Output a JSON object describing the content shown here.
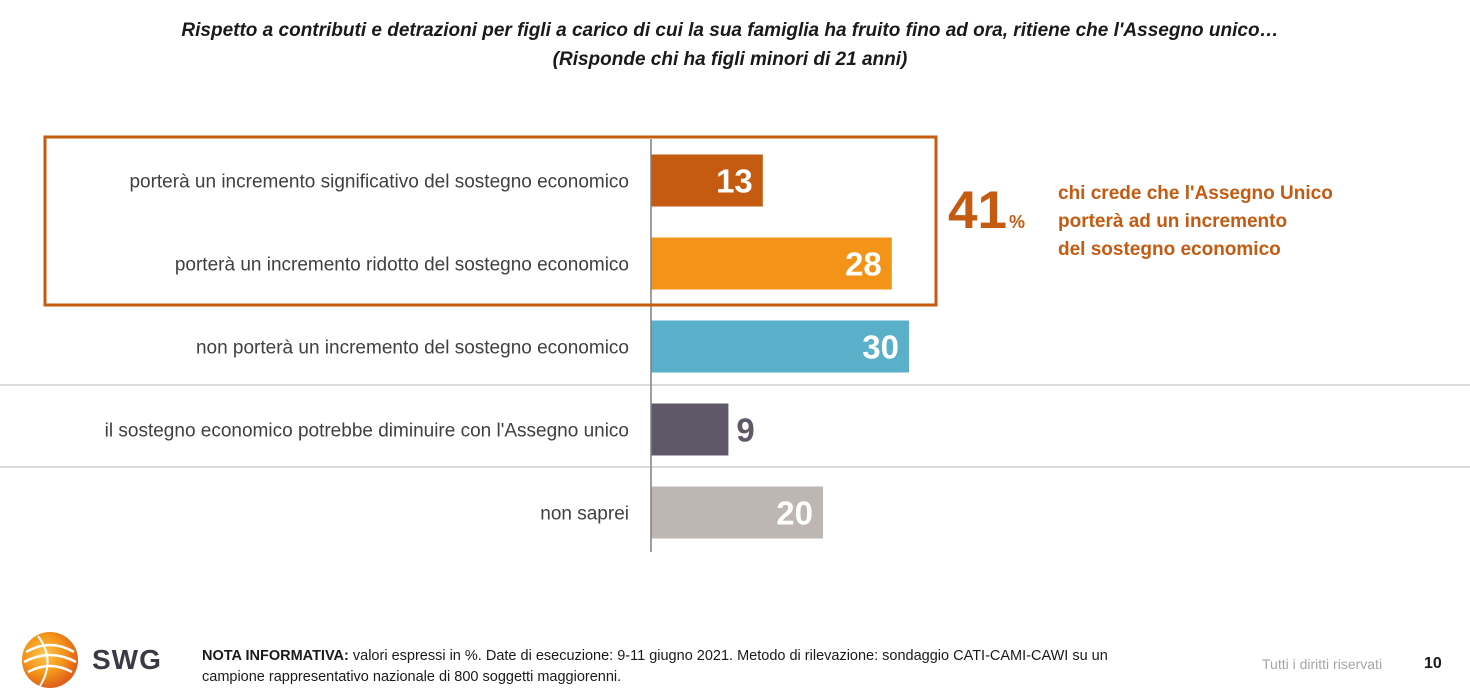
{
  "title": {
    "line1": "Rispetto a contributi e detrazioni per figli a carico di cui la sua famiglia ha fruito fino ad ora, ritiene che l'Assegno unico…",
    "line2": "(Risponde chi ha figli minori di 21 anni)"
  },
  "chart_data": {
    "type": "bar",
    "orientation": "horizontal",
    "categories": [
      "porterà un incremento significativo del sostegno economico",
      "porterà un incremento ridotto del sostegno economico",
      "non porterà un incremento del sostegno economico",
      "il sostegno economico potrebbe diminuire con l'Assegno unico",
      "non saprei"
    ],
    "values": [
      13,
      28,
      30,
      9,
      20
    ],
    "colors": [
      "#c55a11",
      "#f39318",
      "#5aafc9",
      "#5f5868",
      "#beb6b2"
    ],
    "value_label_colors": [
      "#ffffff",
      "#ffffff",
      "#ffffff",
      "#5f5868",
      "#ffffff"
    ],
    "highlight_group": [
      0,
      1
    ]
  },
  "callout": {
    "value": "41",
    "unit": "%",
    "lines": [
      "chi crede che l'Assegno Unico",
      "porterà ad un incremento",
      "del sostegno economico"
    ],
    "color": "#c55a11"
  },
  "footer": {
    "logo_text": "SWG",
    "note_label": "NOTA INFORMATIVA:",
    "note_text": " valori espressi in %. Date di esecuzione: 9-11 giugno 2021. Metodo di rilevazione: sondaggio CATI-CAMI-CAWI su un campione rappresentativo nazionale di 800 soggetti maggiorenni.",
    "rights": "Tutti i diritti riservati",
    "page_number": "10"
  }
}
